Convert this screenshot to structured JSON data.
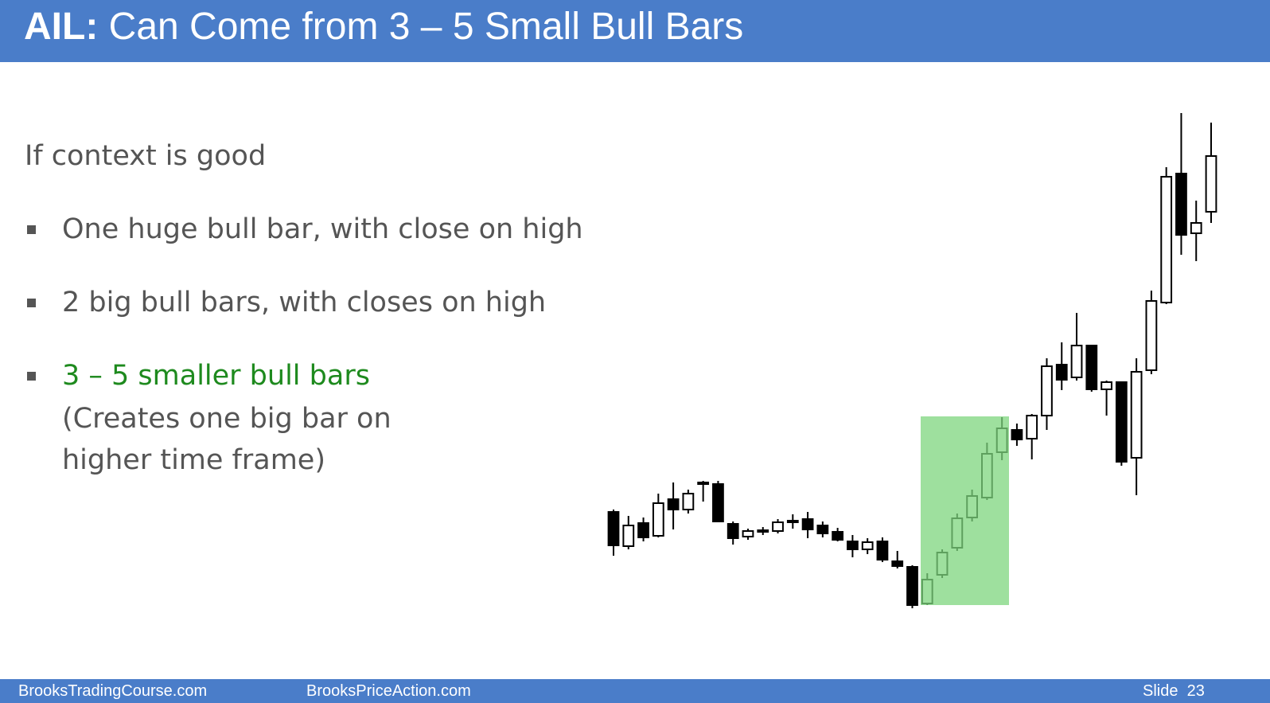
{
  "header": {
    "title_bold": "AIL:",
    "title": "Can Come from 3 – 5 Small Bull Bars"
  },
  "body": {
    "intro": "If context is good",
    "bullets": [
      "One huge bull bar, with close on high",
      "2 big bull bars, with closes on high",
      "3 – 5 smaller bull bars"
    ],
    "note_lines": [
      "(Creates one big bar on",
      "higher time frame)"
    ]
  },
  "chart_data": {
    "type": "candlestick",
    "color": "#000000",
    "highlight_color": "#7ed67e",
    "open": [
      157,
      114,
      143,
      127,
      173,
      160,
      192,
      192,
      142,
      126,
      132,
      133,
      144,
      148,
      140,
      132,
      120,
      110,
      120,
      95,
      88,
      42,
      78,
      112,
      150,
      175,
      232,
      260,
      249,
      278,
      342,
      326,
      366,
      311,
      320,
      225,
      335,
      420,
      582,
      507,
      534
    ],
    "high": [
      160,
      152,
      150,
      180,
      194,
      185,
      196,
      196,
      145,
      136,
      138,
      148,
      154,
      157,
      145,
      137,
      128,
      124,
      125,
      108,
      90,
      80,
      110,
      155,
      185,
      244,
      276,
      268,
      280,
      350,
      370,
      407,
      366,
      322,
      320,
      350,
      435,
      590,
      658,
      548,
      646
    ],
    "low": [
      102,
      110,
      120,
      125,
      135,
      155,
      170,
      144,
      116,
      122,
      128,
      130,
      136,
      124,
      125,
      120,
      100,
      104,
      94,
      86,
      36,
      40,
      74,
      108,
      145,
      172,
      222,
      240,
      223,
      260,
      310,
      322,
      308,
      278,
      215,
      178,
      330,
      418,
      480,
      472,
      520
    ],
    "close": [
      115,
      140,
      125,
      168,
      160,
      180,
      194,
      145,
      124,
      133,
      134,
      144,
      146,
      135,
      130,
      122,
      110,
      119,
      97,
      89,
      40,
      72,
      106,
      149,
      177,
      230,
      262,
      248,
      278,
      340,
      323,
      366,
      311,
      320,
      220,
      333,
      422,
      578,
      505,
      520,
      604
    ],
    "ylim": [
      0,
      700
    ]
  },
  "footer": {
    "left": "BrooksTradingCourse.com",
    "middle": "BrooksPriceAction.com",
    "slide_label": "Slide",
    "slide_number": "23"
  }
}
